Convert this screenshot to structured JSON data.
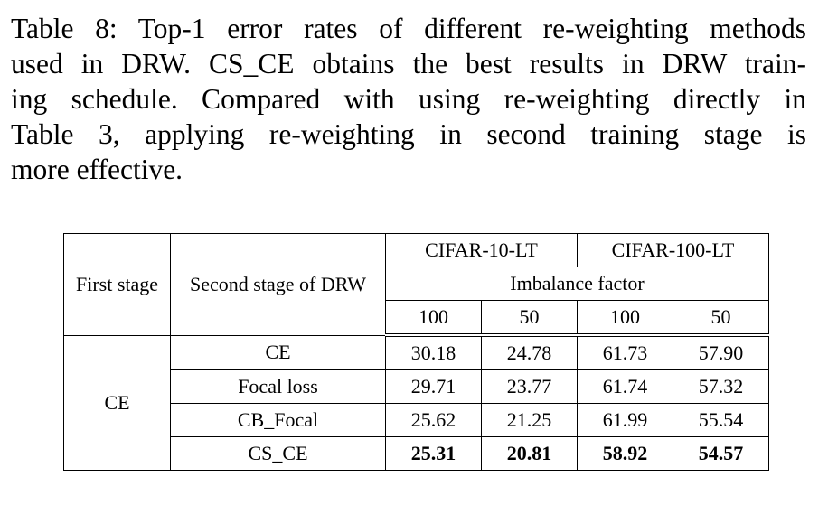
{
  "caption": [
    "Table 8: Top-1 error rates of different re-weighting methods",
    "used in DRW. CS_CE obtains the best results in DRW train-",
    "ing schedule. Compared with using re-weighting directly in",
    "Table 3, applying re-weighting in second training stage is",
    "more effective."
  ],
  "table": {
    "header": {
      "first_stage": "First stage",
      "second_stage": "Second stage of DRW",
      "datasets": [
        "CIFAR-10-LT",
        "CIFAR-100-LT"
      ],
      "subheader": "Imbalance factor",
      "factors": [
        "100",
        "50",
        "100",
        "50"
      ]
    },
    "first_stage_value": "CE",
    "rows": [
      {
        "method": "CE",
        "values": [
          "30.18",
          "24.78",
          "61.73",
          "57.90"
        ],
        "bold": false
      },
      {
        "method": "Focal loss",
        "values": [
          "29.71",
          "23.77",
          "61.74",
          "57.32"
        ],
        "bold": false
      },
      {
        "method": "CB_Focal",
        "values": [
          "25.62",
          "21.25",
          "61.99",
          "55.54"
        ],
        "bold": false
      },
      {
        "method": "CS_CE",
        "values": [
          "25.31",
          "20.81",
          "58.92",
          "54.57"
        ],
        "bold": true
      }
    ]
  }
}
